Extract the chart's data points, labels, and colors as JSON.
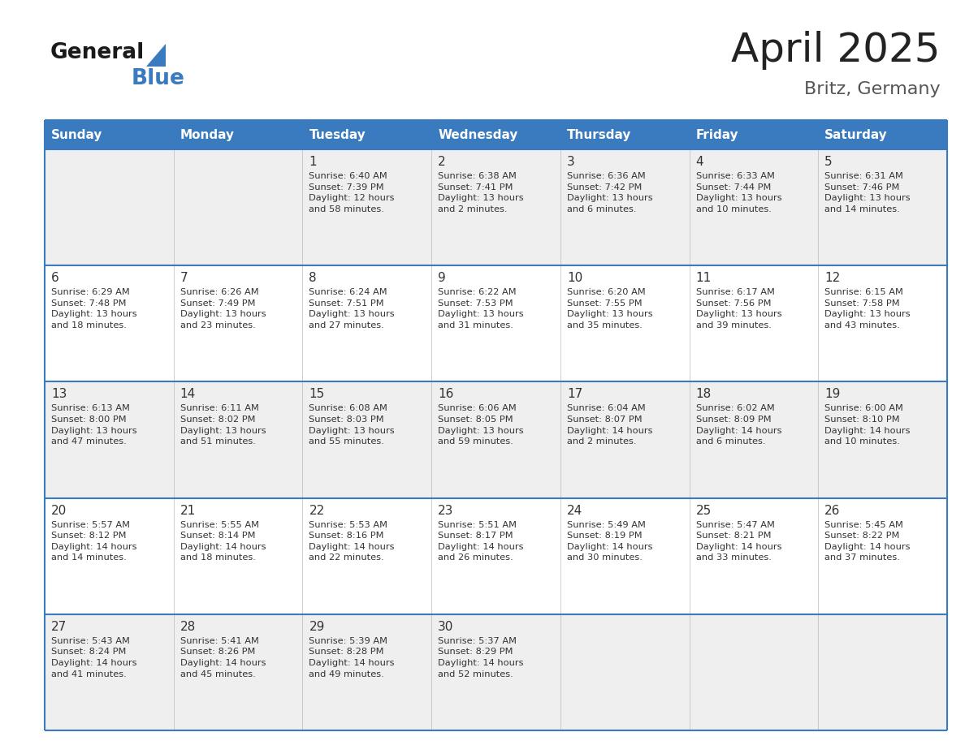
{
  "title": "April 2025",
  "subtitle": "Britz, Germany",
  "title_color": "#222222",
  "subtitle_color": "#555555",
  "header_bg_color": "#3a7abf",
  "header_text_color": "#ffffff",
  "row_bg_colors": [
    "#efefef",
    "#ffffff",
    "#efefef",
    "#ffffff",
    "#efefef"
  ],
  "day_number_color": "#333333",
  "cell_text_color": "#333333",
  "grid_line_color": "#3a7abf",
  "separator_line_color": "#3a7abf",
  "days_of_week": [
    "Sunday",
    "Monday",
    "Tuesday",
    "Wednesday",
    "Thursday",
    "Friday",
    "Saturday"
  ],
  "weeks": [
    [
      {
        "day": null,
        "info": null
      },
      {
        "day": null,
        "info": null
      },
      {
        "day": 1,
        "info": "Sunrise: 6:40 AM\nSunset: 7:39 PM\nDaylight: 12 hours\nand 58 minutes."
      },
      {
        "day": 2,
        "info": "Sunrise: 6:38 AM\nSunset: 7:41 PM\nDaylight: 13 hours\nand 2 minutes."
      },
      {
        "day": 3,
        "info": "Sunrise: 6:36 AM\nSunset: 7:42 PM\nDaylight: 13 hours\nand 6 minutes."
      },
      {
        "day": 4,
        "info": "Sunrise: 6:33 AM\nSunset: 7:44 PM\nDaylight: 13 hours\nand 10 minutes."
      },
      {
        "day": 5,
        "info": "Sunrise: 6:31 AM\nSunset: 7:46 PM\nDaylight: 13 hours\nand 14 minutes."
      }
    ],
    [
      {
        "day": 6,
        "info": "Sunrise: 6:29 AM\nSunset: 7:48 PM\nDaylight: 13 hours\nand 18 minutes."
      },
      {
        "day": 7,
        "info": "Sunrise: 6:26 AM\nSunset: 7:49 PM\nDaylight: 13 hours\nand 23 minutes."
      },
      {
        "day": 8,
        "info": "Sunrise: 6:24 AM\nSunset: 7:51 PM\nDaylight: 13 hours\nand 27 minutes."
      },
      {
        "day": 9,
        "info": "Sunrise: 6:22 AM\nSunset: 7:53 PM\nDaylight: 13 hours\nand 31 minutes."
      },
      {
        "day": 10,
        "info": "Sunrise: 6:20 AM\nSunset: 7:55 PM\nDaylight: 13 hours\nand 35 minutes."
      },
      {
        "day": 11,
        "info": "Sunrise: 6:17 AM\nSunset: 7:56 PM\nDaylight: 13 hours\nand 39 minutes."
      },
      {
        "day": 12,
        "info": "Sunrise: 6:15 AM\nSunset: 7:58 PM\nDaylight: 13 hours\nand 43 minutes."
      }
    ],
    [
      {
        "day": 13,
        "info": "Sunrise: 6:13 AM\nSunset: 8:00 PM\nDaylight: 13 hours\nand 47 minutes."
      },
      {
        "day": 14,
        "info": "Sunrise: 6:11 AM\nSunset: 8:02 PM\nDaylight: 13 hours\nand 51 minutes."
      },
      {
        "day": 15,
        "info": "Sunrise: 6:08 AM\nSunset: 8:03 PM\nDaylight: 13 hours\nand 55 minutes."
      },
      {
        "day": 16,
        "info": "Sunrise: 6:06 AM\nSunset: 8:05 PM\nDaylight: 13 hours\nand 59 minutes."
      },
      {
        "day": 17,
        "info": "Sunrise: 6:04 AM\nSunset: 8:07 PM\nDaylight: 14 hours\nand 2 minutes."
      },
      {
        "day": 18,
        "info": "Sunrise: 6:02 AM\nSunset: 8:09 PM\nDaylight: 14 hours\nand 6 minutes."
      },
      {
        "day": 19,
        "info": "Sunrise: 6:00 AM\nSunset: 8:10 PM\nDaylight: 14 hours\nand 10 minutes."
      }
    ],
    [
      {
        "day": 20,
        "info": "Sunrise: 5:57 AM\nSunset: 8:12 PM\nDaylight: 14 hours\nand 14 minutes."
      },
      {
        "day": 21,
        "info": "Sunrise: 5:55 AM\nSunset: 8:14 PM\nDaylight: 14 hours\nand 18 minutes."
      },
      {
        "day": 22,
        "info": "Sunrise: 5:53 AM\nSunset: 8:16 PM\nDaylight: 14 hours\nand 22 minutes."
      },
      {
        "day": 23,
        "info": "Sunrise: 5:51 AM\nSunset: 8:17 PM\nDaylight: 14 hours\nand 26 minutes."
      },
      {
        "day": 24,
        "info": "Sunrise: 5:49 AM\nSunset: 8:19 PM\nDaylight: 14 hours\nand 30 minutes."
      },
      {
        "day": 25,
        "info": "Sunrise: 5:47 AM\nSunset: 8:21 PM\nDaylight: 14 hours\nand 33 minutes."
      },
      {
        "day": 26,
        "info": "Sunrise: 5:45 AM\nSunset: 8:22 PM\nDaylight: 14 hours\nand 37 minutes."
      }
    ],
    [
      {
        "day": 27,
        "info": "Sunrise: 5:43 AM\nSunset: 8:24 PM\nDaylight: 14 hours\nand 41 minutes."
      },
      {
        "day": 28,
        "info": "Sunrise: 5:41 AM\nSunset: 8:26 PM\nDaylight: 14 hours\nand 45 minutes."
      },
      {
        "day": 29,
        "info": "Sunrise: 5:39 AM\nSunset: 8:28 PM\nDaylight: 14 hours\nand 49 minutes."
      },
      {
        "day": 30,
        "info": "Sunrise: 5:37 AM\nSunset: 8:29 PM\nDaylight: 14 hours\nand 52 minutes."
      },
      {
        "day": null,
        "info": null
      },
      {
        "day": null,
        "info": null
      },
      {
        "day": null,
        "info": null
      }
    ]
  ]
}
